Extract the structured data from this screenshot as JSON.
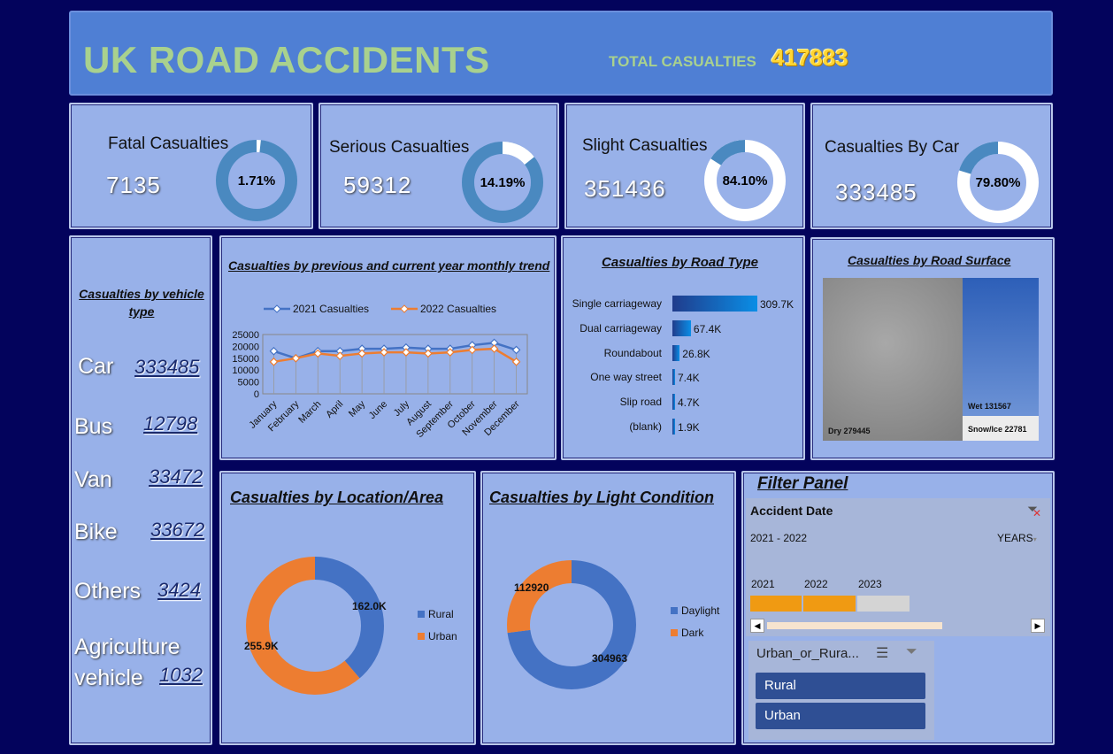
{
  "header": {
    "title": "UK ROAD ACCIDENTS",
    "total_label": "TOTAL CASUALTIES",
    "total_value": "417883"
  },
  "kpis": [
    {
      "label": "Fatal Casualties",
      "value": "7135",
      "pct": "1.71%"
    },
    {
      "label": "Serious Casualties",
      "value": "59312",
      "pct": "14.19%"
    },
    {
      "label": "Slight Casualties",
      "value": "351436",
      "pct": "84.10%"
    },
    {
      "label": "Casualties By Car",
      "value": "333485",
      "pct": "79.80%"
    }
  ],
  "vehicle": {
    "title": "Casualties by vehicle type",
    "items": [
      {
        "type": "Car",
        "value": "333485"
      },
      {
        "type": "Bus",
        "value": "12798"
      },
      {
        "type": "Van",
        "value": "33472"
      },
      {
        "type": "Bike",
        "value": "33672"
      },
      {
        "type": "Others",
        "value": "3424"
      },
      {
        "type": "Agriculture",
        "type2": "vehicle",
        "value": "1032"
      }
    ]
  },
  "trend": {
    "title": "Casualties by previous and current year monthly trend"
  },
  "road_type": {
    "title": "Casualties by Road Type"
  },
  "surface": {
    "title": "Casualties by Road Surface",
    "dry": "Dry 279445",
    "wet": "Wet 131567",
    "snow": "Snow/Ice 22781"
  },
  "location": {
    "title": "Casualties by Location/Area"
  },
  "light": {
    "title": "Casualties by Light Condition"
  },
  "filter": {
    "title": "Filter Panel",
    "date_label": "Accident Date",
    "range": "2021 - 2022",
    "level": "YEARS",
    "years": [
      "2021",
      "2022",
      "2023"
    ],
    "slicer_title": "Urban_or_Rura...",
    "options": [
      "Rural",
      "Urban"
    ]
  },
  "chart_data": [
    {
      "type": "line",
      "title": "Casualties by previous and current year monthly trend",
      "categories": [
        "January",
        "February",
        "March",
        "April",
        "May",
        "June",
        "July",
        "August",
        "September",
        "October",
        "November",
        "December"
      ],
      "series": [
        {
          "name": "2021 Casualties",
          "values": [
            18000,
            15000,
            18000,
            18000,
            19000,
            19000,
            19500,
            19000,
            19000,
            20500,
            21500,
            18500
          ]
        },
        {
          "name": "2022 Casualties",
          "values": [
            13500,
            15000,
            17000,
            16000,
            17000,
            17500,
            17500,
            17000,
            17500,
            18500,
            19000,
            13500
          ]
        }
      ],
      "ylim": [
        0,
        25000
      ],
      "yticks": [
        "25000",
        "20000",
        "15000",
        "10000",
        "5000",
        "0"
      ],
      "legend": "top",
      "colors": [
        "#4472c4",
        "#ed7d31"
      ]
    },
    {
      "type": "bar",
      "title": "Casualties by Road Type",
      "categories": [
        "Single carriageway",
        "Dual carriageway",
        "Roundabout",
        "One way street",
        "Slip road",
        "(blank)"
      ],
      "values": [
        309700,
        67400,
        26800,
        7400,
        4700,
        1900
      ],
      "labels": [
        "309.7K",
        "67.4K",
        "26.8K",
        "7.4K",
        "4.7K",
        "1.9K"
      ]
    },
    {
      "type": "pie",
      "title": "Casualties by Location/Area",
      "categories": [
        "Rural",
        "Urban"
      ],
      "values": [
        162000,
        255900
      ],
      "labels": [
        "162.0K",
        "255.9K"
      ],
      "colors": [
        "#4472c4",
        "#ed7d31"
      ],
      "legend": "right"
    },
    {
      "type": "pie",
      "title": "Casualties by Light Condition",
      "categories": [
        "Daylight",
        "Dark"
      ],
      "values": [
        304963,
        112920
      ],
      "labels": [
        "304963",
        "112920"
      ],
      "colors": [
        "#4472c4",
        "#ed7d31"
      ],
      "legend": "right"
    }
  ]
}
